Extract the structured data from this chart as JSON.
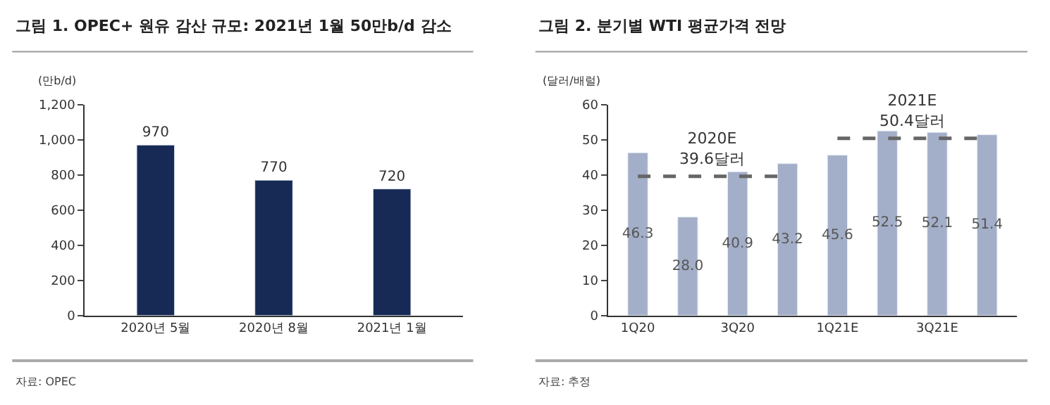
{
  "chart_data": [
    {
      "type": "bar",
      "title": "그림 1. OPEC+ 원유 감산 규모: 2021년 1월 50만b/d 감소",
      "ylabel": "(만b/d)",
      "categories": [
        "2020년 5월",
        "2020년 8월",
        "2021년 1월"
      ],
      "series": [
        {
          "color": "#172a56",
          "values": [
            970,
            770,
            720
          ]
        }
      ],
      "ylim": [
        0,
        1200
      ],
      "yticks": [
        0,
        200,
        400,
        600,
        800,
        {
          "value": 1000,
          "label": "1,000"
        },
        {
          "value": 1200,
          "label": "1,200"
        }
      ],
      "data_labels": true,
      "annotations": [
        "자료: OPEC"
      ]
    },
    {
      "type": "bar",
      "title": "그림 2. 분기별 WTI 평균가격 전망",
      "ylabel": "(달러/배럴)",
      "categories": [
        "1Q20",
        null,
        "3Q20",
        null,
        "1Q21E",
        null,
        "3Q21E",
        null
      ],
      "series": [
        {
          "color": "#a3aec8",
          "values": [
            46.3,
            28.0,
            40.9,
            43.2,
            45.6,
            52.5,
            52.1,
            51.4
          ],
          "value_labels": [
            "46.3",
            "28.0",
            "40.9",
            "43.2",
            "45.6",
            "52.5",
            "52.1",
            "51.4"
          ]
        },
        {
          "type": "line",
          "color": "#666666",
          "line_style": "dashed",
          "marker": "none",
          "values": [
            39.6,
            39.6,
            39.6,
            39.6,
            null,
            null,
            null,
            null
          ]
        },
        {
          "type": "line",
          "color": "#666666",
          "line_style": "dashed",
          "marker": "none",
          "values": [
            null,
            null,
            null,
            null,
            50.4,
            50.4,
            50.4,
            50.4
          ]
        }
      ],
      "ylim": [
        0,
        60
      ],
      "yticks": [
        0,
        10,
        20,
        30,
        40,
        50,
        60
      ],
      "annotations": [
        {
          "text": "2020E\n39.6달러",
          "x": "3Q20",
          "y": 39.6
        },
        {
          "text": "2021E\n50.4달러",
          "x": "3Q21E",
          "y": 50.4
        },
        "자료: 추정"
      ]
    }
  ]
}
